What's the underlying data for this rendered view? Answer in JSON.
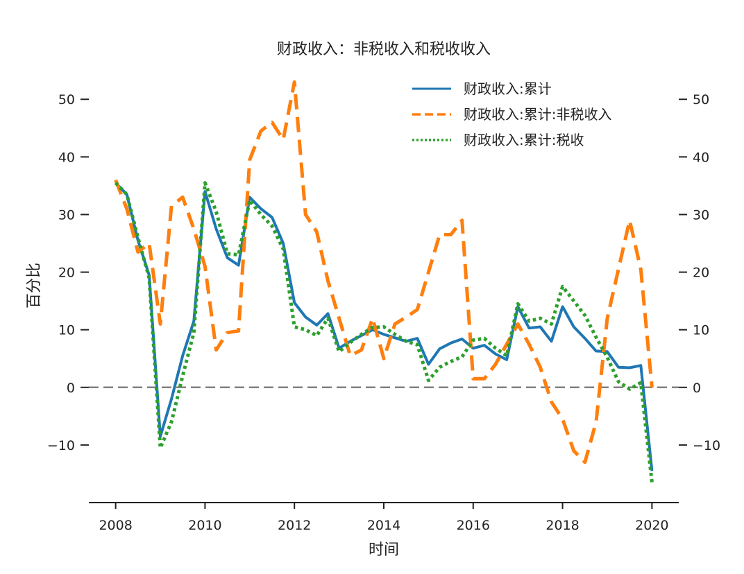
{
  "chart_data": {
    "type": "line",
    "title": "财政收入：非税收入和税收收入",
    "xlabel": "时间",
    "ylabel": "百分比",
    "xlim": [
      2007.4,
      2020.6
    ],
    "ylim": [
      -20,
      54
    ],
    "x_ticks": [
      2008,
      2010,
      2012,
      2014,
      2016,
      2018,
      2020
    ],
    "x_tick_labels": [
      "2008",
      "2010",
      "2012",
      "2014",
      "2016",
      "2018",
      "2020"
    ],
    "y_ticks": [
      -10,
      0,
      10,
      20,
      30,
      40,
      50
    ],
    "y_tick_labels": [
      "−10",
      "0",
      "10",
      "20",
      "30",
      "40",
      "50"
    ],
    "secondary_y_axis": true,
    "reference_line": {
      "y": 0,
      "style": "dashed",
      "color": "#808080"
    },
    "legend_position": "top-right",
    "colors": {
      "total": "#1f77b4",
      "nontax": "#ff7f0e",
      "tax": "#2ca02c",
      "axis": "#222222"
    },
    "series": [
      {
        "name": "财政收入:累计",
        "style": "solid",
        "x": [
          2008.0,
          2008.25,
          2008.5,
          2008.75,
          2009.0,
          2009.25,
          2009.5,
          2009.75,
          2010.0,
          2010.25,
          2010.5,
          2010.75,
          2011.0,
          2011.25,
          2011.5,
          2011.75,
          2012.0,
          2012.25,
          2012.5,
          2012.75,
          2013.0,
          2013.25,
          2013.5,
          2013.75,
          2014.0,
          2014.25,
          2014.5,
          2014.75,
          2015.0,
          2015.25,
          2015.5,
          2015.75,
          2016.0,
          2016.25,
          2016.5,
          2016.75,
          2017.0,
          2017.25,
          2017.5,
          2017.75,
          2018.0,
          2018.25,
          2018.5,
          2018.75,
          2019.0,
          2019.25,
          2019.5,
          2019.75,
          2020.0
        ],
        "values": [
          35.5,
          33.5,
          25.5,
          19.5,
          -8.5,
          -2,
          5.5,
          11.5,
          34,
          27.5,
          22.5,
          21.2,
          33,
          31,
          29.5,
          25,
          14.7,
          12.2,
          10.8,
          12.8,
          6.8,
          8,
          9,
          10,
          9.2,
          8.6,
          8,
          8.5,
          4,
          6.7,
          7.7,
          8.4,
          6.8,
          7.3,
          5.8,
          4.8,
          14,
          10.3,
          10.5,
          8,
          14,
          10.5,
          8.5,
          6.3,
          6.2,
          3.5,
          3.4,
          3.8,
          -14.5
        ]
      },
      {
        "name": "财政收入:累计:非税收入",
        "style": "dashed",
        "x": [
          2008.0,
          2008.25,
          2008.5,
          2008.75,
          2009.0,
          2009.25,
          2009.5,
          2009.75,
          2010.0,
          2010.25,
          2010.5,
          2010.75,
          2011.0,
          2011.25,
          2011.5,
          2011.75,
          2012.0,
          2012.25,
          2012.5,
          2012.75,
          2013.0,
          2013.25,
          2013.5,
          2013.75,
          2014.0,
          2014.25,
          2014.5,
          2014.75,
          2015.0,
          2015.25,
          2015.5,
          2015.75,
          2016.0,
          2016.25,
          2016.5,
          2016.75,
          2017.0,
          2017.25,
          2017.5,
          2017.75,
          2018.0,
          2018.25,
          2018.5,
          2018.75,
          2019.0,
          2019.25,
          2019.5,
          2019.75,
          2020.0
        ],
        "values": [
          36,
          31,
          23.5,
          25,
          11,
          31.5,
          33,
          27.5,
          21,
          6.5,
          9.5,
          9.8,
          39.5,
          44.5,
          46,
          43,
          53,
          30,
          27,
          18.5,
          12,
          5.5,
          6.5,
          12,
          5,
          11,
          12.2,
          13.5,
          20,
          26.5,
          26.5,
          29,
          1.5,
          1.5,
          4,
          7.5,
          11,
          7.5,
          3.5,
          -2.5,
          -5.5,
          -11,
          -13,
          -6,
          12,
          20.5,
          29,
          20.5,
          0
        ]
      },
      {
        "name": "财政收入:累计:税收",
        "style": "dotted",
        "x": [
          2008.0,
          2008.25,
          2008.5,
          2008.75,
          2009.0,
          2009.25,
          2009.5,
          2009.75,
          2010.0,
          2010.25,
          2010.5,
          2010.75,
          2011.0,
          2011.25,
          2011.5,
          2011.75,
          2012.0,
          2012.25,
          2012.5,
          2012.75,
          2013.0,
          2013.25,
          2013.5,
          2013.75,
          2014.0,
          2014.25,
          2014.5,
          2014.75,
          2015.0,
          2015.25,
          2015.5,
          2015.75,
          2016.0,
          2016.25,
          2016.5,
          2016.75,
          2017.0,
          2017.25,
          2017.5,
          2017.75,
          2018.0,
          2018.25,
          2018.5,
          2018.75,
          2019.0,
          2019.25,
          2019.5,
          2019.75,
          2020.0
        ],
        "values": [
          35.5,
          33.5,
          26,
          19,
          -10.5,
          -6,
          2,
          9.5,
          35.5,
          30.5,
          23.2,
          23,
          32.5,
          30,
          28,
          24,
          10.5,
          10,
          9,
          12,
          6.2,
          7.8,
          9.2,
          10.4,
          10.5,
          9.2,
          8,
          7.4,
          1.2,
          3.5,
          4.5,
          5.3,
          8.2,
          8.5,
          6.8,
          5.5,
          14.5,
          11.5,
          12,
          11,
          17.5,
          15,
          12.5,
          8.7,
          5.2,
          1,
          -0.3,
          0.8,
          -16.5
        ]
      }
    ]
  }
}
